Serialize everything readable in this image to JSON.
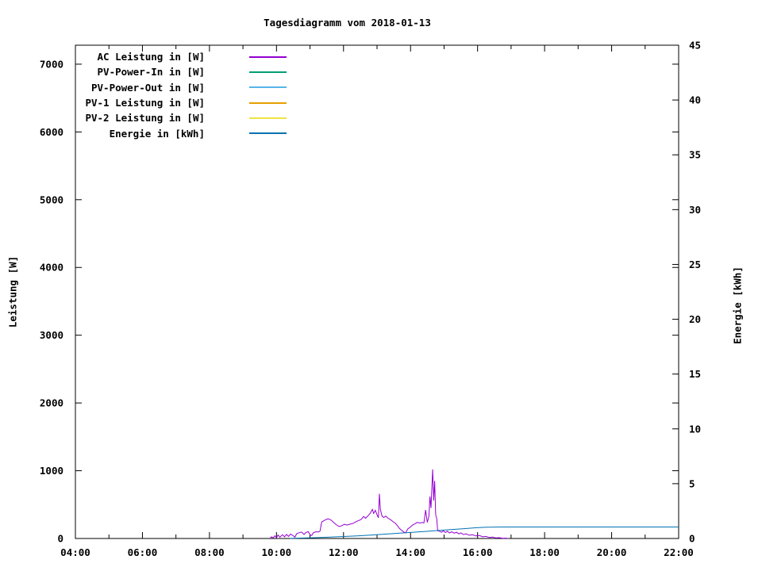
{
  "chart_data": {
    "type": "line",
    "title": "Tagesdiagramm vom 2018-01-13",
    "ylabel": "Leistung [W]",
    "y2label": "Energie [kWh]",
    "grid": false,
    "legend_position": "top-left-inside",
    "xlim": [
      4,
      22
    ],
    "ylim": [
      0,
      7280
    ],
    "y2lim": [
      0,
      45
    ],
    "x_ticks": {
      "labels": [
        "04:00",
        "06:00",
        "08:00",
        "10:00",
        "12:00",
        "14:00",
        "16:00",
        "18:00",
        "20:00",
        "22:00"
      ],
      "values": [
        4,
        6,
        8,
        10,
        12,
        14,
        16,
        18,
        20,
        22
      ],
      "minor": [
        5,
        7,
        9,
        11,
        13,
        15,
        17,
        19,
        21
      ]
    },
    "y_ticks": {
      "labels": [
        "0",
        "1000",
        "2000",
        "3000",
        "4000",
        "5000",
        "6000",
        "7000"
      ],
      "values": [
        0,
        1000,
        2000,
        3000,
        4000,
        5000,
        6000,
        7000
      ]
    },
    "y2_ticks": {
      "labels": [
        "0",
        "5",
        "10",
        "15",
        "20",
        "25",
        "30",
        "35",
        "40",
        "45"
      ],
      "values": [
        0,
        5,
        10,
        15,
        20,
        25,
        30,
        35,
        40,
        45
      ]
    },
    "series": [
      {
        "name": "AC Leistung in [W]",
        "color": "#9400d3",
        "axis": "y1",
        "points": [
          [
            9.81,
            0
          ],
          [
            9.85,
            25
          ],
          [
            9.9,
            8
          ],
          [
            9.95,
            40
          ],
          [
            10.0,
            15
          ],
          [
            10.05,
            50
          ],
          [
            10.1,
            20
          ],
          [
            10.18,
            55
          ],
          [
            10.24,
            25
          ],
          [
            10.3,
            60
          ],
          [
            10.36,
            30
          ],
          [
            10.42,
            65
          ],
          [
            10.5,
            40
          ],
          [
            10.55,
            20
          ],
          [
            10.6,
            70
          ],
          [
            10.68,
            85
          ],
          [
            10.75,
            95
          ],
          [
            10.82,
            60
          ],
          [
            10.88,
            90
          ],
          [
            10.95,
            100
          ],
          [
            11.0,
            55
          ],
          [
            11.05,
            45
          ],
          [
            11.1,
            85
          ],
          [
            11.18,
            100
          ],
          [
            11.25,
            95
          ],
          [
            11.3,
            110
          ],
          [
            11.35,
            245
          ],
          [
            11.42,
            265
          ],
          [
            11.48,
            280
          ],
          [
            11.54,
            290
          ],
          [
            11.62,
            275
          ],
          [
            11.7,
            240
          ],
          [
            11.78,
            205
          ],
          [
            11.87,
            175
          ],
          [
            11.95,
            190
          ],
          [
            12.03,
            210
          ],
          [
            12.1,
            198
          ],
          [
            12.2,
            212
          ],
          [
            12.28,
            222
          ],
          [
            12.36,
            245
          ],
          [
            12.44,
            262
          ],
          [
            12.52,
            278
          ],
          [
            12.6,
            325
          ],
          [
            12.66,
            298
          ],
          [
            12.73,
            335
          ],
          [
            12.8,
            375
          ],
          [
            12.86,
            430
          ],
          [
            12.9,
            370
          ],
          [
            12.95,
            415
          ],
          [
            13.0,
            350
          ],
          [
            13.04,
            305
          ],
          [
            13.07,
            660
          ],
          [
            13.1,
            430
          ],
          [
            13.15,
            330
          ],
          [
            13.2,
            310
          ],
          [
            13.26,
            330
          ],
          [
            13.33,
            298
          ],
          [
            13.4,
            278
          ],
          [
            13.47,
            252
          ],
          [
            13.54,
            228
          ],
          [
            13.6,
            195
          ],
          [
            13.67,
            148
          ],
          [
            13.74,
            118
          ],
          [
            13.8,
            95
          ],
          [
            13.85,
            82
          ],
          [
            13.92,
            140
          ],
          [
            13.99,
            168
          ],
          [
            14.06,
            198
          ],
          [
            14.13,
            215
          ],
          [
            14.2,
            238
          ],
          [
            14.27,
            228
          ],
          [
            14.34,
            235
          ],
          [
            14.4,
            230
          ],
          [
            14.45,
            420
          ],
          [
            14.5,
            238
          ],
          [
            14.55,
            330
          ],
          [
            14.58,
            620
          ],
          [
            14.61,
            450
          ],
          [
            14.64,
            780
          ],
          [
            14.66,
            1020
          ],
          [
            14.69,
            560
          ],
          [
            14.72,
            850
          ],
          [
            14.75,
            350
          ],
          [
            14.78,
            295
          ],
          [
            14.81,
            115
          ],
          [
            14.86,
            108
          ],
          [
            14.92,
            92
          ],
          [
            14.98,
            112
          ],
          [
            15.04,
            88
          ],
          [
            15.1,
            108
          ],
          [
            15.16,
            82
          ],
          [
            15.23,
            98
          ],
          [
            15.3,
            78
          ],
          [
            15.37,
            92
          ],
          [
            15.44,
            68
          ],
          [
            15.5,
            82
          ],
          [
            15.58,
            58
          ],
          [
            15.66,
            68
          ],
          [
            15.75,
            48
          ],
          [
            15.85,
            55
          ],
          [
            15.95,
            38
          ],
          [
            16.05,
            44
          ],
          [
            16.15,
            24
          ],
          [
            16.25,
            30
          ],
          [
            16.35,
            14
          ],
          [
            16.45,
            20
          ],
          [
            16.55,
            8
          ],
          [
            16.65,
            12
          ],
          [
            16.75,
            4
          ],
          [
            16.85,
            5
          ],
          [
            16.92,
            0
          ]
        ]
      },
      {
        "name": "PV-Power-In in [W]",
        "color": "#009e73",
        "axis": "y1",
        "points": []
      },
      {
        "name": "PV-Power-Out in [W]",
        "color": "#56b4e9",
        "axis": "y1",
        "points": []
      },
      {
        "name": "PV-1 Leistung in [W]",
        "color": "#e69f00",
        "axis": "y1",
        "points": []
      },
      {
        "name": "PV-2 Leistung in [W]",
        "color": "#f0e442",
        "axis": "y1",
        "points": []
      },
      {
        "name": "Energie in [kWh]",
        "color": "#0072b2",
        "axis": "y2",
        "points": [
          [
            10.4,
            0.01
          ],
          [
            10.8,
            0.04
          ],
          [
            11.2,
            0.08
          ],
          [
            11.6,
            0.13
          ],
          [
            12.0,
            0.18
          ],
          [
            12.4,
            0.24
          ],
          [
            12.8,
            0.31
          ],
          [
            13.2,
            0.39
          ],
          [
            13.6,
            0.47
          ],
          [
            14.0,
            0.55
          ],
          [
            14.4,
            0.63
          ],
          [
            14.8,
            0.72
          ],
          [
            15.2,
            0.81
          ],
          [
            15.6,
            0.9
          ],
          [
            15.9,
            0.97
          ],
          [
            16.2,
            1.02
          ],
          [
            16.5,
            1.04
          ],
          [
            17.0,
            1.05
          ],
          [
            22.0,
            1.05
          ]
        ]
      }
    ]
  }
}
